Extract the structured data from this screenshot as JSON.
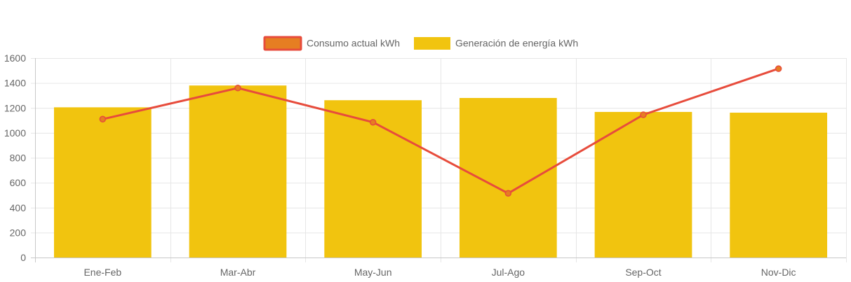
{
  "chart_data": {
    "type": "bar",
    "categories": [
      "Ene-Feb",
      "Mar-Abr",
      "May-Jun",
      "Jul-Ago",
      "Sep-Oct",
      "Nov-Dic"
    ],
    "series": [
      {
        "name": "Consumo actual kWh",
        "kind": "line",
        "values": [
          1110,
          1360,
          1085,
          515,
          1145,
          1515
        ],
        "color": "#e74c3c",
        "point_fill": "#e67e22"
      },
      {
        "name": "Generación de energía kWh",
        "kind": "bar",
        "values": [
          1205,
          1380,
          1262,
          1280,
          1168,
          1162
        ],
        "color": "#f1c40f"
      }
    ],
    "ylim": [
      0,
      1600
    ],
    "yticks": [
      0,
      200,
      400,
      600,
      800,
      1000,
      1200,
      1400,
      1600
    ],
    "grid": true,
    "legend_position": "top-center",
    "title": "",
    "xlabel": "",
    "ylabel": ""
  },
  "colors": {
    "grid": "#e6e6e6",
    "axis": "#c8c8c8",
    "tick_text": "#666666"
  }
}
